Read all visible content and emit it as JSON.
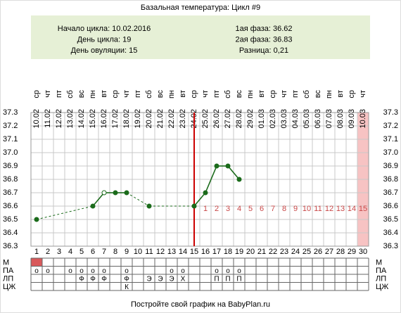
{
  "chart_data": {
    "type": "line",
    "title": "Базальная температура: Цикл #9",
    "info_left": [
      "Начало цикла: 10.02.2016",
      "День цикла: 19",
      "День овуляции: 15"
    ],
    "info_right": [
      "1ая фаза: 36.62",
      "2ая фаза: 36.83",
      "Разница: 0,21"
    ],
    "info_color": "#e6f0d6",
    "weekdays": [
      "ср",
      "чт",
      "пт",
      "сб",
      "вс",
      "пн",
      "вт",
      "ср",
      "чт",
      "пт",
      "сб",
      "вс",
      "пн",
      "вт",
      "ср",
      "чт",
      "пт",
      "сб",
      "вс",
      "пн",
      "вт",
      "ср",
      "чт",
      "пт",
      "сб",
      "вс",
      "пн",
      "вт",
      "ср",
      "чт"
    ],
    "dates": [
      "10.02",
      "11.02",
      "12.02",
      "13.02",
      "14.02",
      "15.02",
      "16.02",
      "17.02",
      "18.02",
      "19.02",
      "20.02",
      "21.02",
      "22.02",
      "23.02",
      "24.02",
      "25.02",
      "26.02",
      "27.02",
      "28.02",
      "29.02",
      "01.03",
      "02.03",
      "03.03",
      "04.03",
      "05.03",
      "06.03",
      "07.03",
      "08.03",
      "09.03",
      "10.03"
    ],
    "categories": [
      "1",
      "2",
      "3",
      "4",
      "5",
      "6",
      "7",
      "8",
      "9",
      "10",
      "11",
      "12",
      "13",
      "14",
      "15",
      "16",
      "17",
      "18",
      "19",
      "20",
      "21",
      "22",
      "23",
      "24",
      "25",
      "26",
      "27",
      "28",
      "29",
      "30"
    ],
    "series": [
      {
        "color": "#1b6b1b",
        "values": [
          36.5,
          null,
          null,
          null,
          null,
          36.6,
          36.7,
          36.7,
          36.7,
          null,
          36.6,
          null,
          null,
          null,
          36.6,
          36.7,
          36.9,
          36.9,
          36.8,
          null,
          null,
          null,
          null,
          null,
          null,
          null,
          null,
          null,
          null,
          null
        ],
        "markers": [
          "filled",
          null,
          null,
          null,
          null,
          "filled",
          "open",
          "filled",
          "filled",
          null,
          "filled",
          null,
          null,
          null,
          "filled",
          "filled",
          "filled",
          "filled",
          "filled",
          null,
          null,
          null,
          null,
          null,
          null,
          null,
          null,
          null,
          null,
          null
        ]
      }
    ],
    "ylim": [
      36.3,
      37.3
    ],
    "yticks": [
      36.3,
      36.4,
      36.5,
      36.6,
      36.7,
      36.8,
      36.9,
      {
        "value": 37,
        "label": "37.0"
      },
      37.1,
      37.2,
      37.3
    ],
    "grid": true,
    "ovulation_day": 15,
    "ovulation_color": "#cc0000",
    "phase_days": [
      null,
      null,
      null,
      null,
      null,
      null,
      null,
      null,
      null,
      null,
      null,
      null,
      null,
      null,
      null,
      1,
      2,
      3,
      4,
      5,
      6,
      7,
      8,
      9,
      10,
      11,
      12,
      13,
      14,
      15
    ],
    "phase_color": "#c84848",
    "highlight_day": 30,
    "highlight_color": "#f7c3c3",
    "table_rows": [
      {
        "label": "М",
        "marked": [
          1
        ],
        "fill": "#d9595b"
      },
      {
        "label": "ПА",
        "cells": [
          "о",
          "о",
          null,
          "о",
          "о",
          "о",
          "о",
          null,
          "о",
          null,
          null,
          null,
          "о",
          "о",
          null,
          null,
          "о",
          "о",
          "о",
          null,
          null,
          null,
          null,
          null,
          null,
          null,
          null,
          null,
          null,
          null
        ]
      },
      {
        "label": "ЛП",
        "cells": [
          null,
          null,
          null,
          null,
          "Ф",
          "Ф",
          "Ф",
          null,
          "Ф",
          null,
          "Э",
          "Э",
          "Э",
          "Х",
          null,
          null,
          "П",
          "П",
          "П",
          null,
          null,
          null,
          null,
          null,
          null,
          null,
          null,
          null,
          null,
          null
        ]
      },
      {
        "label": "ЦЖ",
        "cells": [
          null,
          null,
          null,
          null,
          null,
          null,
          null,
          null,
          "К",
          null,
          null,
          null,
          null,
          null,
          null,
          null,
          null,
          null,
          null,
          null,
          null,
          null,
          null,
          null,
          null,
          null,
          null,
          null,
          null,
          null
        ]
      }
    ],
    "footer": "Постройте свой график на BabyPlan.ru"
  }
}
